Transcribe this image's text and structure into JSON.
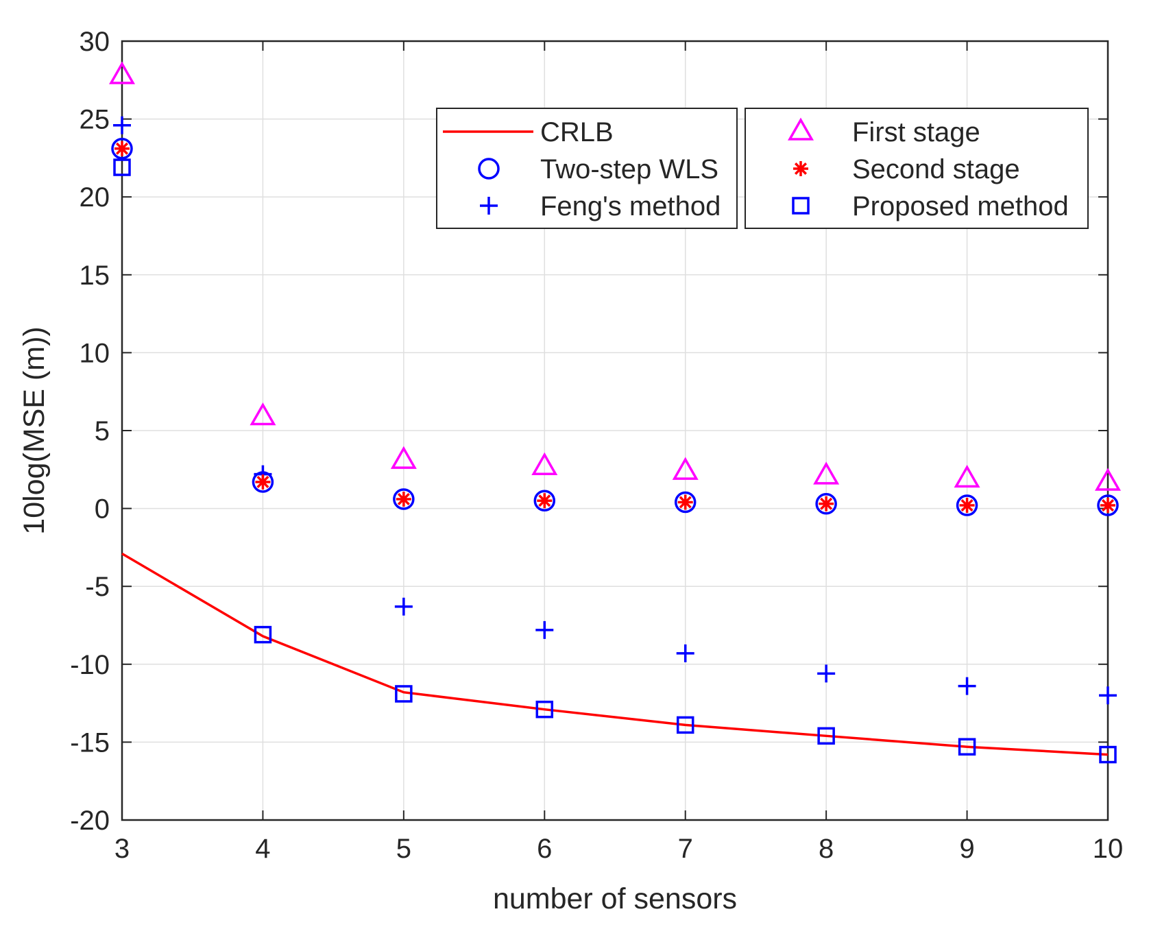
{
  "chart_data": {
    "type": "scatter",
    "title": "",
    "xlabel": "number of sensors",
    "ylabel": "10log(MSE (m))",
    "xlim": [
      3,
      10
    ],
    "ylim": [
      -20,
      30
    ],
    "xticks": [
      "3",
      "4",
      "5",
      "6",
      "7",
      "8",
      "9",
      "10"
    ],
    "yticks": [
      "-20",
      "-15",
      "-10",
      "-5",
      "0",
      "5",
      "10",
      "15",
      "20",
      "25",
      "30"
    ],
    "grid": true,
    "legend_position": "top-right",
    "x": [
      3,
      4,
      5,
      6,
      7,
      8,
      9,
      10
    ],
    "series": [
      {
        "name": "CRLB",
        "style": "line",
        "color": "#ff0000",
        "values": [
          -2.9,
          -8.2,
          -11.8,
          -12.9,
          -13.9,
          -14.6,
          -15.3,
          -15.8
        ]
      },
      {
        "name": "Two-step WLS",
        "style": "circle",
        "color": "#0000ff",
        "values": [
          23.1,
          1.7,
          0.6,
          0.5,
          0.4,
          0.3,
          0.2,
          0.2
        ]
      },
      {
        "name": "Feng's method",
        "style": "plus",
        "color": "#0000ff",
        "values": [
          24.6,
          2.2,
          -6.3,
          -7.8,
          -9.3,
          -10.6,
          -11.4,
          -12.0
        ]
      },
      {
        "name": "First stage",
        "style": "triangle",
        "color": "#ff00ff",
        "values": [
          27.8,
          5.9,
          3.1,
          2.7,
          2.4,
          2.1,
          1.9,
          1.7
        ]
      },
      {
        "name": "Second stage",
        "style": "asterisk",
        "color": "#ff0000",
        "values": [
          23.1,
          1.7,
          0.6,
          0.5,
          0.4,
          0.3,
          0.2,
          0.2
        ]
      },
      {
        "name": "Proposed method",
        "style": "square",
        "color": "#0000ff",
        "values": [
          21.9,
          -8.1,
          -11.9,
          -12.9,
          -13.9,
          -14.6,
          -15.3,
          -15.8
        ]
      }
    ],
    "legend_groups": [
      [
        "CRLB",
        "Two-step WLS",
        "Feng's method"
      ],
      [
        "First stage",
        "Second stage",
        "Proposed method"
      ]
    ]
  }
}
